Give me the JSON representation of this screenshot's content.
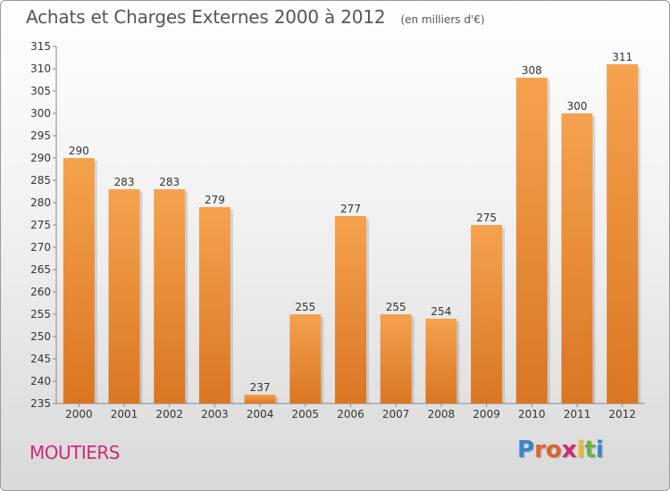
{
  "chart_data": {
    "type": "bar",
    "title": "Achats et Charges Externes 2000 à 2012",
    "subtitle": "(en milliers d'€)",
    "categories": [
      "2000",
      "2001",
      "2002",
      "2003",
      "2004",
      "2005",
      "2006",
      "2007",
      "2008",
      "2009",
      "2010",
      "2011",
      "2012"
    ],
    "values": [
      290,
      283,
      283,
      279,
      237,
      255,
      277,
      255,
      254,
      275,
      308,
      300,
      311
    ],
    "xlabel": "",
    "ylabel": "",
    "ylim": [
      235,
      315
    ],
    "yticks": [
      235,
      240,
      245,
      250,
      255,
      260,
      265,
      270,
      275,
      280,
      285,
      290,
      295,
      300,
      305,
      310,
      315
    ],
    "grid": false,
    "bar_color_top": "#f5a24f",
    "bar_color_bottom": "#d97622"
  },
  "footer": {
    "commune": "MOUTIERS",
    "logo_letters": [
      {
        "ch": "P",
        "color": "#3a86c8"
      },
      {
        "ch": "r",
        "color": "#e0632a"
      },
      {
        "ch": "o",
        "color": "#e0632a"
      },
      {
        "ch": "x",
        "color": "#cc2a7a"
      },
      {
        "ch": "i",
        "color": "#f0b823"
      },
      {
        "ch": "t",
        "color": "#6bb33c"
      },
      {
        "ch": "i",
        "color": "#3a86c8"
      }
    ]
  }
}
